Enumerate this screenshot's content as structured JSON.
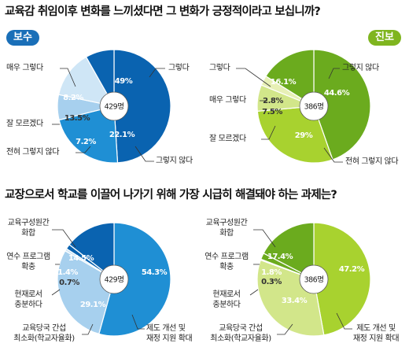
{
  "questions": [
    {
      "title": "교육감 취임이후 변화를 느끼셨다면 그 변화가 긍정적이라고 보십니까?"
    },
    {
      "title": "교장으로서 학교를 이끌어 나가기 위해 가장 시급히 해결돼야 하는 과제는?"
    }
  ],
  "badges": {
    "conservative": "보수",
    "progressive": "진보"
  },
  "colors": {
    "blue_dark": "#0a63b0",
    "blue_mid": "#1f8fd4",
    "blue_light": "#a7d0ee",
    "blue_pale": "#cfe6f6",
    "blue_label_light": "#c3dff3",
    "green_dark": "#6bab1e",
    "green_mid": "#a8d22f",
    "green_light": "#d2e68a",
    "green_pale": "#e7f0b6",
    "green_label_dark": "#eaf5c4",
    "white": "#ffffff",
    "leader": "#333333"
  },
  "chart_data": [
    {
      "type": "pie",
      "group": "보수",
      "question": "교육감 취임이후 변화를 느끼셨다면 그 변화가 긍정적이라고 보십니까?",
      "total": "429명",
      "slices": [
        {
          "label": "그렇다",
          "value": 49,
          "value_text": "49%"
        },
        {
          "label": "그렇지 않다",
          "value": 22.1,
          "value_text": "22.1%"
        },
        {
          "label": "전혀 그렇지 않다",
          "value": 7.2,
          "value_text": "7.2%"
        },
        {
          "label": "잘 모르겠다",
          "value": 13.5,
          "value_text": "13.5%"
        },
        {
          "label": "매우 그렇다",
          "value": 8.2,
          "value_text": "8.2%"
        }
      ]
    },
    {
      "type": "pie",
      "group": "진보",
      "question": "교육감 취임이후 변화를 느끼셨다면 그 변화가 긍정적이라고 보십니까?",
      "total": "386명",
      "slices": [
        {
          "label": "그렇지 않다",
          "value": 44.6,
          "value_text": "44.6%"
        },
        {
          "label": "전혀 그렇지 않다",
          "value": 29,
          "value_text": "29%"
        },
        {
          "label": "잘 모르겠다",
          "value": 7.5,
          "value_text": "7.5%"
        },
        {
          "label": "매우 그렇다",
          "value": 2.8,
          "value_text": "2.8%"
        },
        {
          "label": "그렇다",
          "value": 16.1,
          "value_text": "16.1%"
        }
      ]
    },
    {
      "type": "pie",
      "group": "보수",
      "question": "교장으로서 학교를 이끌어 나가기 위해 가장 시급히 해결돼야 하는 과제는?",
      "total": "429명",
      "slices": [
        {
          "label": "제도 개선 및 재정 지원 확대",
          "value": 54.3,
          "value_text": "54.3%"
        },
        {
          "label": "교육당국 간섭 최소화(학교자율화)",
          "value": 29.1,
          "value_text": "29.1%"
        },
        {
          "label": "현재로서 충분하다",
          "value": 0.7,
          "value_text": "0.7%"
        },
        {
          "label": "연수 프로그램 확충",
          "value": 1.4,
          "value_text": "1.4%"
        },
        {
          "label": "교육구성원간 화합",
          "value": 14.5,
          "value_text": "14.5%"
        }
      ]
    },
    {
      "type": "pie",
      "group": "진보",
      "question": "교장으로서 학교를 이끌어 나가기 위해 가장 시급히 해결돼야 하는 과제는?",
      "total": "386명",
      "slices": [
        {
          "label": "제도 개선 및 재정 지원 확대",
          "value": 47.2,
          "value_text": "47.2%"
        },
        {
          "label": "교육당국 간섭 최소화(학교자율화)",
          "value": 33.4,
          "value_text": "33.4%"
        },
        {
          "label": "현재로서 충분하다",
          "value": 0.3,
          "value_text": "0.3%"
        },
        {
          "label": "연수 프로그램 확충",
          "value": 1.8,
          "value_text": "1.8%"
        },
        {
          "label": "교육구성원간 화합",
          "value": 17.4,
          "value_text": "17.4%"
        }
      ]
    }
  ]
}
